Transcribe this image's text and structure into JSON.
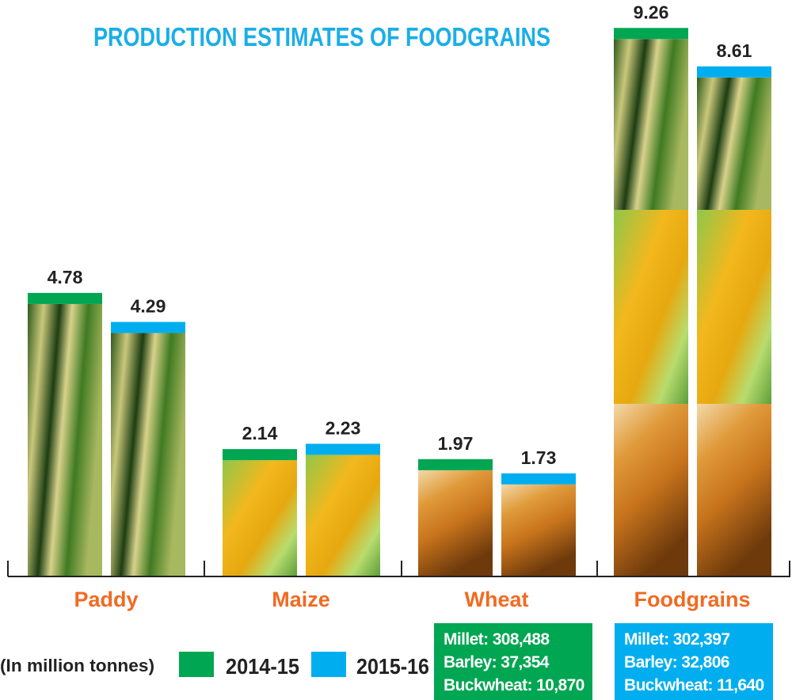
{
  "chart_data": {
    "type": "bar",
    "title": "PRODUCTION ESTIMATES OF FOODGRAINS",
    "unit_note": "(In million tonnes)",
    "categories": [
      "Paddy",
      "Maize",
      "Wheat",
      "Foodgrains"
    ],
    "series": [
      {
        "name": "2014-15",
        "values": [
          4.78,
          2.14,
          1.97,
          9.26
        ],
        "color": "#00a651"
      },
      {
        "name": "2015-16",
        "values": [
          4.29,
          2.23,
          1.73,
          8.61
        ],
        "color": "#00aeef"
      }
    ],
    "ylim": [
      0,
      9.6
    ],
    "grid": false,
    "legend_placement": "bottom-left",
    "label_color": "#f26a21",
    "title_color": "#1aaee8",
    "bar_textures": [
      "paddy",
      "maize",
      "wheat",
      "stacked paddy/maize/wheat"
    ]
  },
  "notes": [
    {
      "series": "2014-15",
      "color": "#00a651",
      "lines": [
        "Millet: 308,488",
        "Barley: 37,354",
        "Buckwheat: 10,870"
      ]
    },
    {
      "series": "2015-16",
      "color": "#00aeef",
      "lines": [
        "Millet: 302,397",
        "Barley: 32,806",
        "Buckwheat: 11,640"
      ]
    }
  ]
}
